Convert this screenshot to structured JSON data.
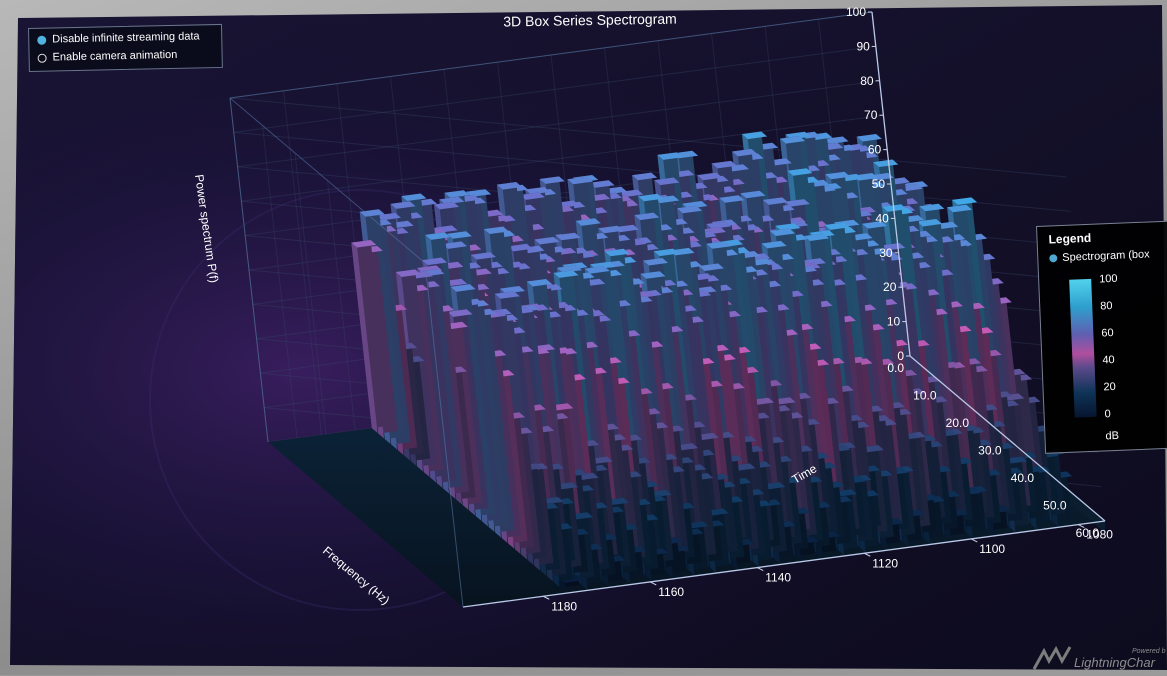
{
  "controls": {
    "streaming_label": "Disable infinite streaming data",
    "camera_label": "Enable camera animation"
  },
  "legend": {
    "title": "Legend",
    "entry_label": "Spectrogram (box",
    "entry_color": "#4fa7d2",
    "scale_labels": [
      "100",
      "80",
      "60",
      "40",
      "20",
      "0"
    ],
    "unit": "dB"
  },
  "branding": {
    "powered_by": "Powered b",
    "name": "LightningChar"
  },
  "chart_data": {
    "type": "bar",
    "title": "3D Box Series Spectrogram",
    "xlabel": "Frequency (Hz)",
    "zlabel": "Time",
    "ylabel": "Power spectrum P(f)",
    "x_ticks": [
      "0.0",
      "10.0",
      "20.0",
      "30.0",
      "40.0",
      "50.0",
      "60.0"
    ],
    "y_ticks": [
      "0",
      "10",
      "20",
      "30",
      "40",
      "50",
      "60",
      "70",
      "80",
      "90",
      "100"
    ],
    "z_ticks": [
      "1080",
      "1100",
      "1120",
      "1140",
      "1160",
      "1180"
    ],
    "xlim": [
      0,
      60
    ],
    "ylim": [
      0,
      100
    ],
    "zlim": [
      1075,
      1195
    ],
    "color_scale": {
      "min": 0,
      "max": 100,
      "unit": "dB"
    },
    "spectrum_profile": {
      "frequency": [
        0,
        2,
        4,
        6,
        8,
        10,
        12,
        14,
        16,
        18,
        20,
        22,
        24,
        26,
        28,
        30,
        32,
        34,
        36,
        38,
        40,
        42,
        44,
        46,
        48,
        50,
        52,
        54,
        56,
        58,
        60
      ],
      "power": [
        62,
        65,
        68,
        64,
        50,
        38,
        42,
        58,
        66,
        70,
        68,
        62,
        55,
        50,
        52,
        60,
        66,
        70,
        72,
        70,
        64,
        56,
        48,
        40,
        34,
        30,
        26,
        22,
        18,
        14,
        10
      ]
    }
  }
}
